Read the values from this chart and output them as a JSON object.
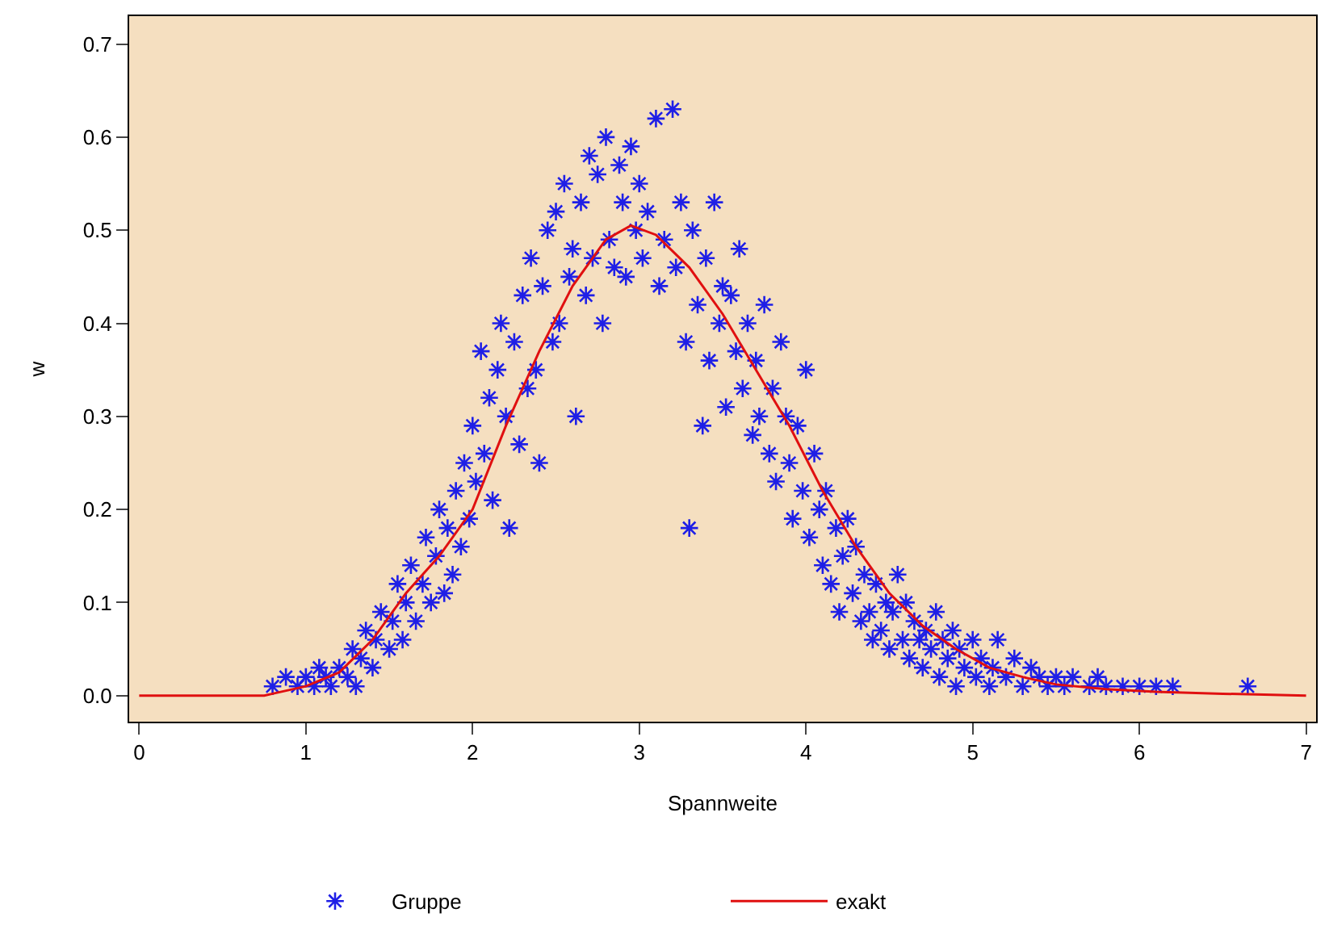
{
  "chart_data": {
    "type": "scatter",
    "xlabel": "Spannweite",
    "ylabel": "w",
    "legend": "bottom",
    "grid": false,
    "xlim": [
      -0.06,
      7.06
    ],
    "ylim": [
      -0.028,
      0.73
    ],
    "xticks": [
      0,
      1,
      2,
      3,
      4,
      5,
      6,
      7
    ],
    "yticks": [
      {
        "value": 0,
        "label": "0.0"
      },
      0.1,
      0.2,
      0.3,
      0.4,
      0.5,
      0.6,
      0.7
    ],
    "series": [
      {
        "name": "Gruppe",
        "marker": "cross",
        "color": "#1f1fe6",
        "x": [
          0.8,
          0.88,
          0.95,
          1.0,
          1.05,
          1.08,
          1.12,
          1.15,
          1.2,
          1.25,
          1.28,
          1.3,
          1.33,
          1.36,
          1.4,
          1.42,
          1.45,
          1.5,
          1.52,
          1.55,
          1.58,
          1.6,
          1.63,
          1.66,
          1.7,
          1.72,
          1.75,
          1.78,
          1.8,
          1.83,
          1.85,
          1.88,
          1.9,
          1.93,
          1.95,
          1.98,
          2.0,
          2.02,
          2.05,
          2.07,
          2.1,
          2.12,
          2.15,
          2.17,
          2.2,
          2.22,
          2.25,
          2.28,
          2.3,
          2.33,
          2.35,
          2.38,
          2.4,
          2.42,
          2.45,
          2.48,
          2.5,
          2.52,
          2.55,
          2.58,
          2.6,
          2.62,
          2.65,
          2.68,
          2.7,
          2.72,
          2.75,
          2.78,
          2.8,
          2.82,
          2.85,
          2.88,
          2.9,
          2.92,
          2.95,
          2.98,
          3.0,
          3.02,
          3.05,
          3.1,
          3.12,
          3.15,
          3.2,
          3.22,
          3.25,
          3.28,
          3.3,
          3.32,
          3.35,
          3.38,
          3.4,
          3.42,
          3.45,
          3.48,
          3.5,
          3.52,
          3.55,
          3.58,
          3.6,
          3.62,
          3.65,
          3.68,
          3.7,
          3.72,
          3.75,
          3.78,
          3.8,
          3.82,
          3.85,
          3.88,
          3.9,
          3.92,
          3.95,
          3.98,
          4.0,
          4.02,
          4.05,
          4.08,
          4.1,
          4.12,
          4.15,
          4.18,
          4.2,
          4.22,
          4.25,
          4.28,
          4.3,
          4.33,
          4.35,
          4.38,
          4.4,
          4.42,
          4.45,
          4.48,
          4.5,
          4.52,
          4.55,
          4.58,
          4.6,
          4.62,
          4.65,
          4.68,
          4.7,
          4.72,
          4.75,
          4.78,
          4.8,
          4.82,
          4.85,
          4.88,
          4.9,
          4.92,
          4.95,
          5.0,
          5.02,
          5.05,
          5.1,
          5.12,
          5.15,
          5.2,
          5.25,
          5.3,
          5.35,
          5.4,
          5.45,
          5.5,
          5.55,
          5.6,
          5.7,
          5.75,
          5.8,
          5.9,
          6.0,
          6.1,
          6.2,
          6.65
        ],
        "values": [
          0.01,
          0.02,
          0.01,
          0.02,
          0.01,
          0.03,
          0.02,
          0.01,
          0.03,
          0.02,
          0.05,
          0.01,
          0.04,
          0.07,
          0.03,
          0.06,
          0.09,
          0.05,
          0.08,
          0.12,
          0.06,
          0.1,
          0.14,
          0.08,
          0.12,
          0.17,
          0.1,
          0.15,
          0.2,
          0.11,
          0.18,
          0.13,
          0.22,
          0.16,
          0.25,
          0.19,
          0.29,
          0.23,
          0.37,
          0.26,
          0.32,
          0.21,
          0.35,
          0.4,
          0.3,
          0.18,
          0.38,
          0.27,
          0.43,
          0.33,
          0.47,
          0.35,
          0.25,
          0.44,
          0.5,
          0.38,
          0.52,
          0.4,
          0.55,
          0.45,
          0.48,
          0.3,
          0.53,
          0.43,
          0.58,
          0.47,
          0.56,
          0.4,
          0.6,
          0.49,
          0.46,
          0.57,
          0.53,
          0.45,
          0.59,
          0.5,
          0.55,
          0.47,
          0.52,
          0.62,
          0.44,
          0.49,
          0.63,
          0.46,
          0.53,
          0.38,
          0.18,
          0.5,
          0.42,
          0.29,
          0.47,
          0.36,
          0.53,
          0.4,
          0.44,
          0.31,
          0.43,
          0.37,
          0.48,
          0.33,
          0.4,
          0.28,
          0.36,
          0.3,
          0.42,
          0.26,
          0.33,
          0.23,
          0.38,
          0.3,
          0.25,
          0.19,
          0.29,
          0.22,
          0.35,
          0.17,
          0.26,
          0.2,
          0.14,
          0.22,
          0.12,
          0.18,
          0.09,
          0.15,
          0.19,
          0.11,
          0.16,
          0.08,
          0.13,
          0.09,
          0.06,
          0.12,
          0.07,
          0.1,
          0.05,
          0.09,
          0.13,
          0.06,
          0.1,
          0.04,
          0.08,
          0.06,
          0.03,
          0.07,
          0.05,
          0.09,
          0.02,
          0.06,
          0.04,
          0.07,
          0.01,
          0.05,
          0.03,
          0.06,
          0.02,
          0.04,
          0.01,
          0.03,
          0.06,
          0.02,
          0.04,
          0.01,
          0.03,
          0.02,
          0.01,
          0.02,
          0.01,
          0.02,
          0.01,
          0.02,
          0.01,
          0.01,
          0.01,
          0.01,
          0.01,
          0.01
        ]
      },
      {
        "type": "line",
        "name": "exakt",
        "marker": "none",
        "line_style": "solid",
        "color": "#e01010",
        "x": [
          0,
          0.75,
          0.8,
          1.0,
          1.2,
          1.4,
          1.6,
          1.8,
          2.0,
          2.2,
          2.4,
          2.6,
          2.8,
          2.95,
          3.1,
          3.3,
          3.5,
          3.7,
          3.9,
          4.1,
          4.3,
          4.5,
          4.7,
          4.9,
          5.1,
          5.3,
          5.5,
          5.8,
          6.1,
          6.5,
          7.0
        ],
        "values": [
          0,
          0,
          0.002,
          0.01,
          0.025,
          0.06,
          0.11,
          0.15,
          0.2,
          0.29,
          0.37,
          0.44,
          0.49,
          0.505,
          0.495,
          0.46,
          0.41,
          0.35,
          0.29,
          0.22,
          0.16,
          0.11,
          0.075,
          0.05,
          0.03,
          0.02,
          0.012,
          0.007,
          0.004,
          0.002,
          0
        ]
      }
    ]
  }
}
